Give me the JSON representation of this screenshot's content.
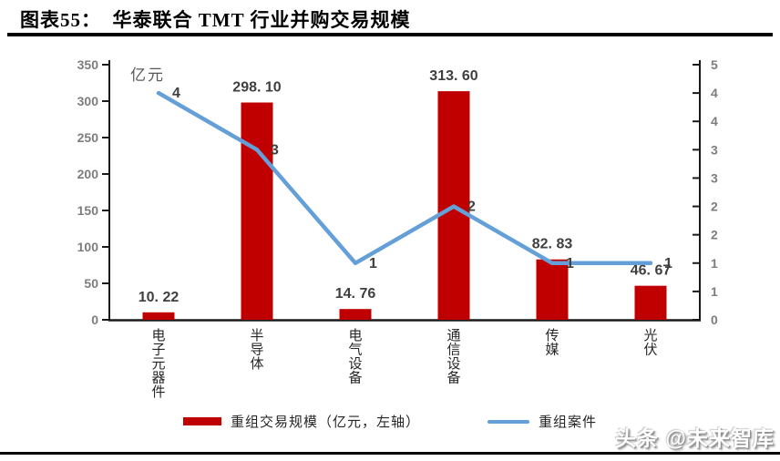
{
  "header": {
    "title": "图表55：  华泰联合 TMT 行业并购交易规模"
  },
  "chart_data": {
    "type": "bar",
    "subtype": "bar-line-combo",
    "title": "华泰联合 TMT 行业并购交易规模",
    "unit_label": "亿元",
    "categories": [
      "电子元器件",
      "半导体",
      "电气设备",
      "通信设备",
      "传媒",
      "光伏"
    ],
    "series": [
      {
        "name": "重组交易规模（亿元，左轴）",
        "type": "bar",
        "axis": "left",
        "color": "#c00000",
        "values": [
          10.22,
          298.1,
          14.76,
          313.6,
          82.83,
          46.67
        ],
        "labels": [
          "10. 22",
          "298. 10",
          "14. 76",
          "313. 60",
          "82. 83",
          "46. 67"
        ]
      },
      {
        "name": "重组案件",
        "type": "line",
        "axis": "right",
        "color": "#64a0d7",
        "values": [
          4,
          3,
          1,
          2,
          1,
          1
        ],
        "labels": [
          "4",
          "3",
          "1",
          "2",
          "1",
          "1"
        ]
      }
    ],
    "left_axis": {
      "min": 0,
      "max": 350,
      "step": 50,
      "tick_labels": [
        "0",
        "50",
        "100",
        "150",
        "200",
        "250",
        "300",
        "350"
      ]
    },
    "right_axis": {
      "min": 0,
      "max": 4.5,
      "step": 0.5,
      "tick_labels": [
        "0",
        "1",
        "1",
        "2",
        "2",
        "3",
        "3",
        "4",
        "4",
        "5"
      ]
    },
    "grid": false,
    "legend_position": "bottom"
  },
  "legend": {
    "bar_label": "重组交易规模（亿元，左轴）",
    "line_label": "重组案件"
  },
  "watermark": {
    "text": "头条 @未来智库"
  },
  "colors": {
    "bar": "#c00000",
    "line": "#64a0d7",
    "axis": "#1a1a1a",
    "tick_text": "#7d7d7d",
    "value_text": "#3f3f3f"
  }
}
